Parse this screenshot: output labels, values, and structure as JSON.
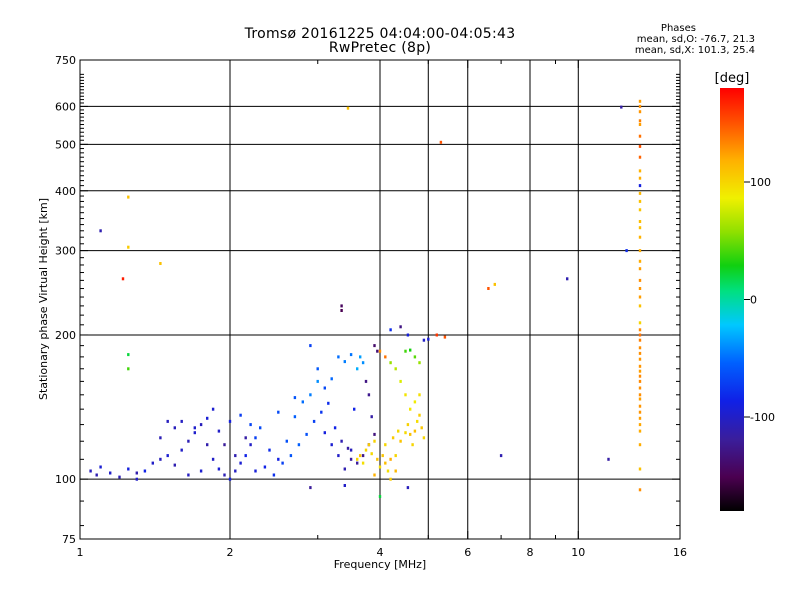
{
  "header": {
    "title": "Tromsø 20161225 04:04:00-04:05:43",
    "subtitle": "RwPretec (8p)"
  },
  "phases_box": {
    "heading": "Phases",
    "line_o": "mean, sd,O: -76.7, 21.3",
    "line_x": "mean, sd,X: 101.3, 25.4"
  },
  "chart_data": {
    "type": "scatter",
    "xlabel": "Frequency [MHz]",
    "ylabel": "Stationary phase Virtual Height [km]",
    "x_scale": "log",
    "y_scale": "log",
    "xlim": [
      1,
      16
    ],
    "ylim": [
      75,
      750
    ],
    "x_ticks": [
      1,
      2,
      4,
      6,
      8,
      10,
      16
    ],
    "x_tick_labels": [
      "1",
      "2",
      "4",
      "6",
      "8",
      "10",
      "16"
    ],
    "x_minor_ticks": [
      3,
      5,
      7,
      9
    ],
    "y_ticks": [
      75,
      100,
      200,
      300,
      400,
      500,
      600,
      750
    ],
    "y_tick_labels": [
      "75",
      "100",
      "200",
      "300",
      "400",
      "500",
      "600",
      "750"
    ],
    "x_grid": [
      2,
      4,
      5,
      6,
      8,
      10
    ],
    "y_grid": [
      100,
      200,
      300,
      400,
      500,
      600
    ],
    "grid": true,
    "colorbar": {
      "label": "[deg]",
      "range": [
        -180,
        180
      ],
      "ticks": [
        100,
        0,
        -100
      ],
      "tick_labels": [
        "100",
        "0",
        "-100"
      ]
    },
    "series": [
      {
        "points": [
          [
            1.05,
            104,
            -105
          ],
          [
            1.08,
            102,
            -110
          ],
          [
            1.1,
            106,
            -95
          ],
          [
            1.15,
            103,
            -100
          ],
          [
            1.2,
            101,
            -108
          ],
          [
            1.25,
            105,
            -90
          ],
          [
            1.3,
            103,
            -112
          ],
          [
            1.35,
            104,
            -85
          ],
          [
            1.4,
            108,
            -100
          ],
          [
            1.45,
            110,
            -105
          ],
          [
            1.5,
            112,
            -95
          ],
          [
            1.55,
            107,
            -110
          ],
          [
            1.6,
            115,
            -100
          ],
          [
            1.65,
            120,
            -108
          ],
          [
            1.7,
            125,
            -98
          ],
          [
            1.75,
            130,
            -105
          ],
          [
            1.8,
            118,
            -112
          ],
          [
            1.85,
            110,
            -100
          ],
          [
            1.9,
            105,
            -95
          ],
          [
            1.95,
            102,
            -108
          ],
          [
            2.0,
            100,
            -90
          ],
          [
            2.05,
            104,
            -102
          ],
          [
            2.1,
            108,
            -95
          ],
          [
            2.15,
            112,
            -85
          ],
          [
            2.2,
            118,
            -100
          ],
          [
            2.25,
            122,
            -70
          ],
          [
            2.3,
            128,
            -65
          ],
          [
            2.4,
            115,
            -80
          ],
          [
            2.5,
            110,
            -88
          ],
          [
            2.6,
            120,
            -62
          ],
          [
            2.7,
            135,
            -55
          ],
          [
            2.8,
            145,
            -50
          ],
          [
            2.9,
            150,
            -45
          ],
          [
            3.0,
            160,
            -40
          ],
          [
            3.1,
            125,
            -90
          ],
          [
            3.2,
            118,
            -95
          ],
          [
            3.3,
            112,
            -100
          ],
          [
            3.4,
            105,
            -110
          ],
          [
            3.5,
            115,
            -105
          ],
          [
            3.55,
            140,
            -85
          ],
          [
            3.6,
            170,
            -30
          ],
          [
            3.65,
            180,
            -35
          ],
          [
            3.7,
            175,
            -40
          ],
          [
            3.75,
            160,
            -130
          ],
          [
            3.8,
            150,
            -125
          ],
          [
            3.85,
            135,
            -115
          ],
          [
            3.9,
            190,
            -140
          ],
          [
            3.95,
            185,
            -135
          ],
          [
            1.6,
            132,
            -102
          ],
          [
            1.7,
            128,
            -98
          ],
          [
            1.8,
            134,
            -94
          ],
          [
            1.9,
            126,
            -100
          ],
          [
            2.0,
            132,
            -90
          ],
          [
            2.1,
            136,
            -72
          ],
          [
            2.2,
            130,
            -68
          ],
          [
            1.55,
            128,
            -105
          ],
          [
            1.65,
            102,
            -103
          ],
          [
            1.75,
            104,
            -96
          ],
          [
            2.05,
            112,
            -110
          ],
          [
            2.25,
            104,
            -92
          ],
          [
            2.35,
            106,
            -85
          ],
          [
            2.45,
            102,
            -78
          ],
          [
            2.55,
            108,
            -70
          ],
          [
            2.65,
            112,
            -60
          ],
          [
            2.75,
            118,
            -55
          ],
          [
            2.85,
            124,
            -62
          ],
          [
            2.95,
            132,
            -70
          ],
          [
            3.05,
            138,
            -75
          ],
          [
            3.15,
            144,
            -80
          ],
          [
            3.25,
            128,
            -85
          ],
          [
            3.35,
            120,
            -110
          ],
          [
            3.45,
            116,
            -115
          ],
          [
            3.5,
            110,
            -118
          ],
          [
            3.6,
            108,
            -120
          ],
          [
            3.7,
            112,
            -125
          ],
          [
            3.8,
            118,
            -128
          ],
          [
            3.9,
            124,
            -132
          ],
          [
            1.95,
            118,
            -120
          ],
          [
            2.15,
            122,
            -115
          ],
          [
            2.5,
            138,
            -65
          ],
          [
            2.7,
            148,
            -60
          ],
          [
            3.0,
            170,
            -58
          ],
          [
            3.2,
            162,
            -52
          ],
          [
            3.3,
            180,
            -50
          ],
          [
            3.4,
            176,
            -45
          ],
          [
            3.5,
            182,
            -48
          ],
          [
            2.9,
            190,
            -70
          ],
          [
            3.1,
            155,
            -66
          ],
          [
            1.45,
            122,
            -108
          ],
          [
            1.5,
            132,
            -104
          ],
          [
            1.85,
            140,
            -96
          ],
          [
            1.3,
            100,
            -100
          ],
          [
            3.35,
            225,
            -150
          ],
          [
            3.35,
            230,
            -145
          ],
          [
            4.2,
            205,
            -80
          ],
          [
            4.4,
            208,
            -130
          ],
          [
            4.55,
            200,
            -90
          ],
          [
            4.9,
            195,
            -100
          ],
          [
            5.0,
            196,
            -95
          ],
          [
            1.1,
            330,
            -110
          ],
          [
            2.9,
            96,
            -120
          ],
          [
            3.4,
            97,
            -100
          ],
          [
            4.55,
            96,
            -105
          ],
          [
            7.0,
            112,
            -110
          ],
          [
            9.5,
            262,
            -110
          ],
          [
            11.5,
            110,
            -115
          ],
          [
            12.2,
            598,
            -115
          ],
          [
            12.5,
            300,
            -80
          ],
          [
            13.3,
            410,
            -90
          ]
        ]
      },
      {
        "points": [
          [
            3.6,
            110,
            100
          ],
          [
            3.65,
            112,
            110
          ],
          [
            3.7,
            108,
            95
          ],
          [
            3.75,
            115,
            100
          ],
          [
            3.8,
            118,
            105
          ],
          [
            3.85,
            113,
            98
          ],
          [
            3.9,
            120,
            102
          ],
          [
            3.95,
            110,
            110
          ],
          [
            4.0,
            106,
            96
          ],
          [
            4.05,
            112,
            108
          ],
          [
            4.1,
            118,
            100
          ],
          [
            4.15,
            104,
            95
          ],
          [
            4.2,
            100,
            105
          ],
          [
            4.3,
            112,
            100
          ],
          [
            4.4,
            120,
            108
          ],
          [
            4.5,
            125,
            98
          ],
          [
            4.55,
            130,
            102
          ],
          [
            4.6,
            124,
            110
          ],
          [
            4.65,
            118,
            100
          ],
          [
            4.7,
            126,
            112
          ],
          [
            4.75,
            132,
            96
          ],
          [
            4.8,
            136,
            104
          ],
          [
            4.85,
            128,
            108
          ],
          [
            4.9,
            122,
            100
          ],
          [
            4.6,
            140,
            90
          ],
          [
            4.7,
            145,
            88
          ],
          [
            4.8,
            150,
            95
          ],
          [
            4.5,
            150,
            92
          ],
          [
            4.4,
            160,
            80
          ],
          [
            4.3,
            170,
            70
          ],
          [
            4.2,
            175,
            60
          ],
          [
            4.1,
            180,
            140
          ],
          [
            4.0,
            185,
            130
          ],
          [
            4.5,
            185,
            40
          ],
          [
            4.6,
            186,
            30
          ],
          [
            4.7,
            180,
            45
          ],
          [
            4.8,
            175,
            60
          ],
          [
            5.2,
            200,
            160
          ],
          [
            5.4,
            198,
            150
          ],
          [
            3.45,
            595,
            110
          ],
          [
            5.3,
            505,
            150
          ],
          [
            1.25,
            388,
            110
          ],
          [
            1.25,
            305,
            105
          ],
          [
            1.22,
            262,
            170
          ],
          [
            1.45,
            282,
            110
          ],
          [
            6.6,
            250,
            150
          ],
          [
            6.8,
            255,
            110
          ],
          [
            4.0,
            92,
            20
          ],
          [
            1.25,
            182,
            20
          ],
          [
            1.25,
            170,
            40
          ],
          [
            4.2,
            110,
            120
          ],
          [
            4.3,
            104,
            115
          ],
          [
            3.9,
            102,
            118
          ],
          [
            4.1,
            108,
            112
          ],
          [
            4.25,
            122,
            105
          ],
          [
            4.35,
            126,
            98
          ]
        ]
      },
      {
        "points": [
          [
            13.3,
            600,
            130
          ],
          [
            13.3,
            585,
            128
          ],
          [
            13.3,
            560,
            135
          ],
          [
            13.3,
            520,
            140
          ],
          [
            13.3,
            495,
            150
          ],
          [
            13.3,
            470,
            145
          ],
          [
            13.3,
            425,
            120
          ],
          [
            13.3,
            395,
            115
          ],
          [
            13.3,
            380,
            110
          ],
          [
            13.3,
            365,
            108
          ],
          [
            13.3,
            345,
            112
          ],
          [
            13.3,
            320,
            118
          ],
          [
            13.3,
            300,
            120
          ],
          [
            13.3,
            275,
            125
          ],
          [
            13.3,
            260,
            130
          ],
          [
            13.3,
            250,
            128
          ],
          [
            13.3,
            230,
            110
          ],
          [
            13.3,
            212,
            100
          ],
          [
            13.3,
            200,
            140
          ],
          [
            13.3,
            188,
            130
          ],
          [
            13.3,
            178,
            128
          ],
          [
            13.3,
            168,
            125
          ],
          [
            13.3,
            160,
            132
          ],
          [
            13.3,
            150,
            130
          ],
          [
            13.3,
            142,
            128
          ],
          [
            13.3,
            134,
            125
          ],
          [
            13.3,
            126,
            120
          ],
          [
            13.3,
            105,
            110
          ],
          [
            13.3,
            95,
            130
          ],
          [
            13.3,
            615,
            125
          ],
          [
            13.3,
            550,
            125
          ],
          [
            13.3,
            440,
            118
          ],
          [
            13.3,
            335,
            112
          ],
          [
            13.3,
            285,
            120
          ],
          [
            13.3,
            240,
            125
          ],
          [
            13.3,
            205,
            132
          ],
          [
            13.3,
            195,
            135
          ],
          [
            13.3,
            183,
            130
          ],
          [
            13.3,
            172,
            128
          ],
          [
            13.3,
            164,
            132
          ],
          [
            13.3,
            155,
            130
          ],
          [
            13.3,
            147,
            125
          ],
          [
            13.3,
            138,
            128
          ],
          [
            13.3,
            130,
            122
          ],
          [
            13.3,
            118,
            120
          ]
        ]
      }
    ]
  }
}
